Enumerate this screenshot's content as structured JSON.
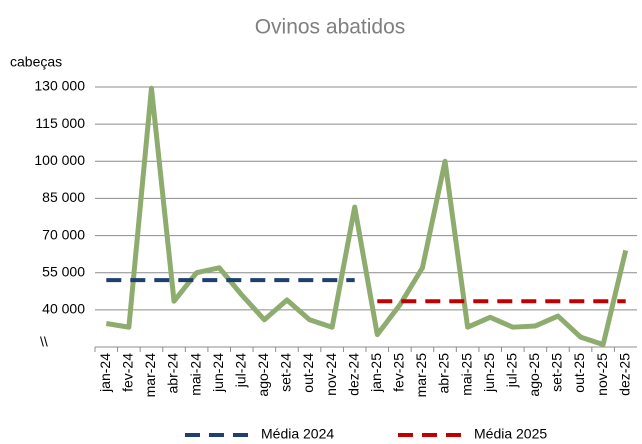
{
  "chart_data": {
    "type": "line",
    "title": "Ovinos abatidos",
    "y_label": "cabeças",
    "y_axis_break_label": "\\\\",
    "categories": [
      "jan-24",
      "fev-24",
      "mar-24",
      "abr-24",
      "mai-24",
      "jun-24",
      "jul-24",
      "ago-24",
      "set-24",
      "out-24",
      "nov-24",
      "dez-24",
      "jan-25",
      "fev-25",
      "mar-25",
      "abr-25",
      "mai-25",
      "jun-25",
      "jul-25",
      "ago-25",
      "set-25",
      "out-25",
      "nov-25",
      "dez-25"
    ],
    "series": [
      {
        "color": "#8fac6f",
        "values": [
          34500,
          33000,
          129500,
          43500,
          55000,
          57000,
          46000,
          36000,
          44000,
          36000,
          33000,
          81500,
          30000,
          42000,
          57000,
          100000,
          33000,
          37000,
          33000,
          33500,
          37500,
          29000,
          26000,
          64000
        ]
      },
      {
        "name": "Média 2024",
        "color": "#1f3f6e",
        "dashed": true,
        "values": [
          52000,
          52000,
          52000,
          52000,
          52000,
          52000,
          52000,
          52000,
          52000,
          52000,
          52000,
          52000,
          null,
          null,
          null,
          null,
          null,
          null,
          null,
          null,
          null,
          null,
          null,
          null
        ]
      },
      {
        "name": "Média 2025",
        "color": "#c00000",
        "dashed": true,
        "values": [
          null,
          null,
          null,
          null,
          null,
          null,
          null,
          null,
          null,
          null,
          null,
          null,
          43500,
          43500,
          43500,
          43500,
          43500,
          43500,
          43500,
          43500,
          43500,
          43500,
          43500,
          43500
        ]
      }
    ],
    "ylim": [
      25000,
      130000
    ],
    "yticks": [
      {
        "value": 40000,
        "label": "40 000"
      },
      {
        "value": 55000,
        "label": "55 000"
      },
      {
        "value": 70000,
        "label": "70 000"
      },
      {
        "value": 85000,
        "label": "85 000"
      },
      {
        "value": 100000,
        "label": "100 000"
      },
      {
        "value": 115000,
        "label": "115 000"
      },
      {
        "value": 130000,
        "label": "130 000"
      }
    ],
    "grid": true
  }
}
